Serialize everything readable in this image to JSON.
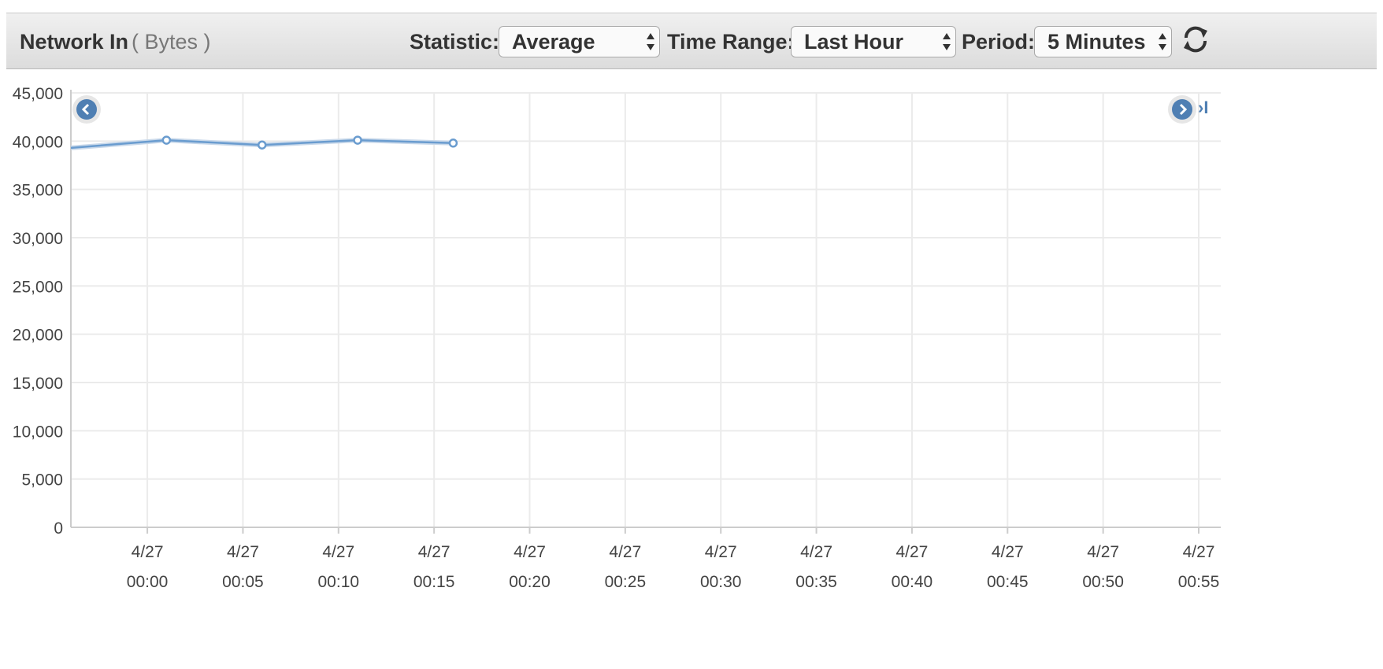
{
  "header": {
    "title": "Network In",
    "unit": "( Bytes )",
    "statistic_label": "Statistic:",
    "statistic_value": "Average",
    "time_range_label": "Time Range:",
    "time_range_value": "Last Hour",
    "period_label": "Period:",
    "period_value": "5 Minutes",
    "refresh_icon": "refresh-icon"
  },
  "navigation": {
    "prev_icon": "chevron-left-icon",
    "next_icon": "chevron-right-icon",
    "latest_icon": "skip-to-end-icon",
    "latest_glyph": "›I",
    "accent_color": "#4f7fb3"
  },
  "chart_data": {
    "type": "line",
    "ylim": [
      0,
      45000
    ],
    "yticks": [
      0,
      5000,
      10000,
      15000,
      20000,
      25000,
      30000,
      35000,
      40000,
      45000
    ],
    "ytick_labels": [
      "0",
      "5,000",
      "10,000",
      "15,000",
      "20,000",
      "25,000",
      "30,000",
      "35,000",
      "40,000",
      "45,000"
    ],
    "xlim": [
      "4/26 23:56",
      "4/27 00:55"
    ],
    "x_tick_times": [
      "00:00",
      "00:05",
      "00:10",
      "00:15",
      "00:20",
      "00:25",
      "00:30",
      "00:35",
      "00:40",
      "00:45",
      "00:50",
      "00:55"
    ],
    "x_tick_dates": [
      "4/27",
      "4/27",
      "4/27",
      "4/27",
      "4/27",
      "4/27",
      "4/27",
      "4/27",
      "4/27",
      "4/27",
      "4/27",
      "4/27"
    ],
    "series": [
      {
        "color": "#6a9ccf",
        "x": [
          "4/26 23:56",
          "4/27 00:01",
          "4/27 00:06",
          "4/27 00:11",
          "4/27 00:16"
        ],
        "y": [
          39300,
          40100,
          39600,
          40100,
          39800
        ],
        "markers": [
          false,
          true,
          true,
          true,
          true
        ]
      }
    ],
    "grid": true
  }
}
